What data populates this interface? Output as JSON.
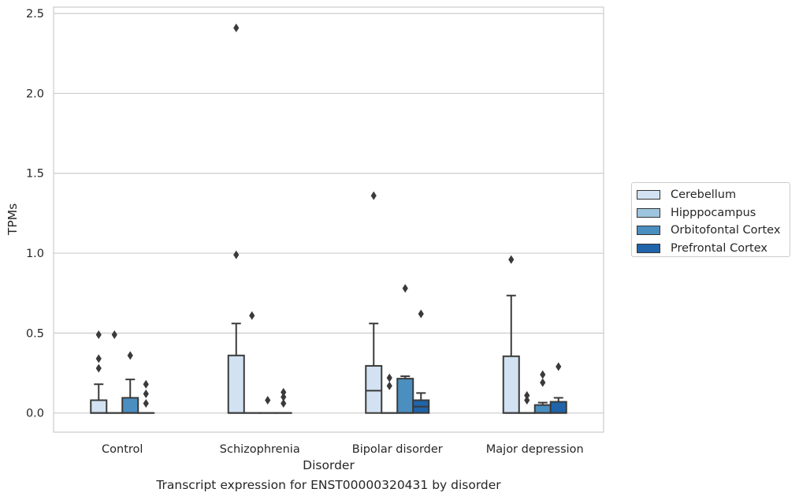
{
  "chart_data": {
    "type": "box",
    "title": "",
    "xlabel": "Disorder",
    "ylabel": "TPMs",
    "ylim": [
      -0.12,
      2.54
    ],
    "yticks": [
      "0.0",
      "0.5",
      "1.0",
      "1.5",
      "2.0",
      "2.5"
    ],
    "grid": "horizontal",
    "legend_position": "right",
    "categories": [
      "Control",
      "Schizophrenia",
      "Bipolar disorder",
      "Major depression"
    ],
    "series": [
      {
        "name": "Cerebellum",
        "color": "#d2e2f2",
        "boxes": [
          {
            "whislo": 0,
            "q1": 0,
            "med": 0,
            "q3": 0.08,
            "whishi": 0.18,
            "fliers": [
              0.28,
              0.34,
              0.49
            ]
          },
          {
            "whislo": 0,
            "q1": 0,
            "med": 0,
            "q3": 0.36,
            "whishi": 0.56,
            "fliers": [
              0.99,
              2.41
            ]
          },
          {
            "whislo": 0,
            "q1": 0,
            "med": 0.14,
            "q3": 0.295,
            "whishi": 0.56,
            "fliers": [
              1.36
            ]
          },
          {
            "whislo": 0,
            "q1": 0,
            "med": 0,
            "q3": 0.355,
            "whishi": 0.735,
            "fliers": [
              0.96
            ]
          }
        ]
      },
      {
        "name": "Hipppocampus",
        "color": "#9dc5df",
        "boxes": [
          {
            "whislo": 0,
            "q1": 0,
            "med": 0,
            "q3": 0,
            "whishi": 0,
            "fliers": [
              0.49
            ]
          },
          {
            "whislo": 0,
            "q1": 0,
            "med": 0,
            "q3": 0,
            "whishi": 0,
            "fliers": [
              0.61
            ]
          },
          {
            "whislo": 0,
            "q1": 0,
            "med": 0,
            "q3": 0,
            "whishi": 0,
            "fliers": [
              0.17,
              0.22
            ]
          },
          {
            "whislo": 0,
            "q1": 0,
            "med": 0,
            "q3": 0,
            "whishi": 0,
            "fliers": [
              0.08,
              0.11
            ]
          }
        ]
      },
      {
        "name": "Orbitofontal Cortex",
        "color": "#4b8fc1",
        "boxes": [
          {
            "whislo": 0,
            "q1": 0,
            "med": 0,
            "q3": 0.095,
            "whishi": 0.21,
            "fliers": [
              0.36
            ]
          },
          {
            "whislo": 0,
            "q1": 0,
            "med": 0,
            "q3": 0,
            "whishi": 0,
            "fliers": [
              0.08
            ]
          },
          {
            "whislo": 0,
            "q1": 0,
            "med": 0,
            "q3": 0.215,
            "whishi": 0.23,
            "fliers": [
              0.78
            ]
          },
          {
            "whislo": 0,
            "q1": 0,
            "med": 0,
            "q3": 0.05,
            "whishi": 0.065,
            "fliers": [
              0.19,
              0.24
            ]
          }
        ]
      },
      {
        "name": "Prefrontal Cortex",
        "color": "#2064aa",
        "boxes": [
          {
            "whislo": 0,
            "q1": 0,
            "med": 0,
            "q3": 0,
            "whishi": 0,
            "fliers": [
              0.06,
              0.12,
              0.18
            ]
          },
          {
            "whislo": 0,
            "q1": 0,
            "med": 0,
            "q3": 0,
            "whishi": 0,
            "fliers": [
              0.06,
              0.1,
              0.13
            ]
          },
          {
            "whislo": 0,
            "q1": 0,
            "med": 0.04,
            "q3": 0.08,
            "whishi": 0.125,
            "fliers": [
              0.62
            ]
          },
          {
            "whislo": 0,
            "q1": 0,
            "med": 0,
            "q3": 0.07,
            "whishi": 0.095,
            "fliers": [
              0.29
            ]
          }
        ]
      }
    ]
  },
  "caption": "Transcript expression for ENST00000320431 by disorder"
}
